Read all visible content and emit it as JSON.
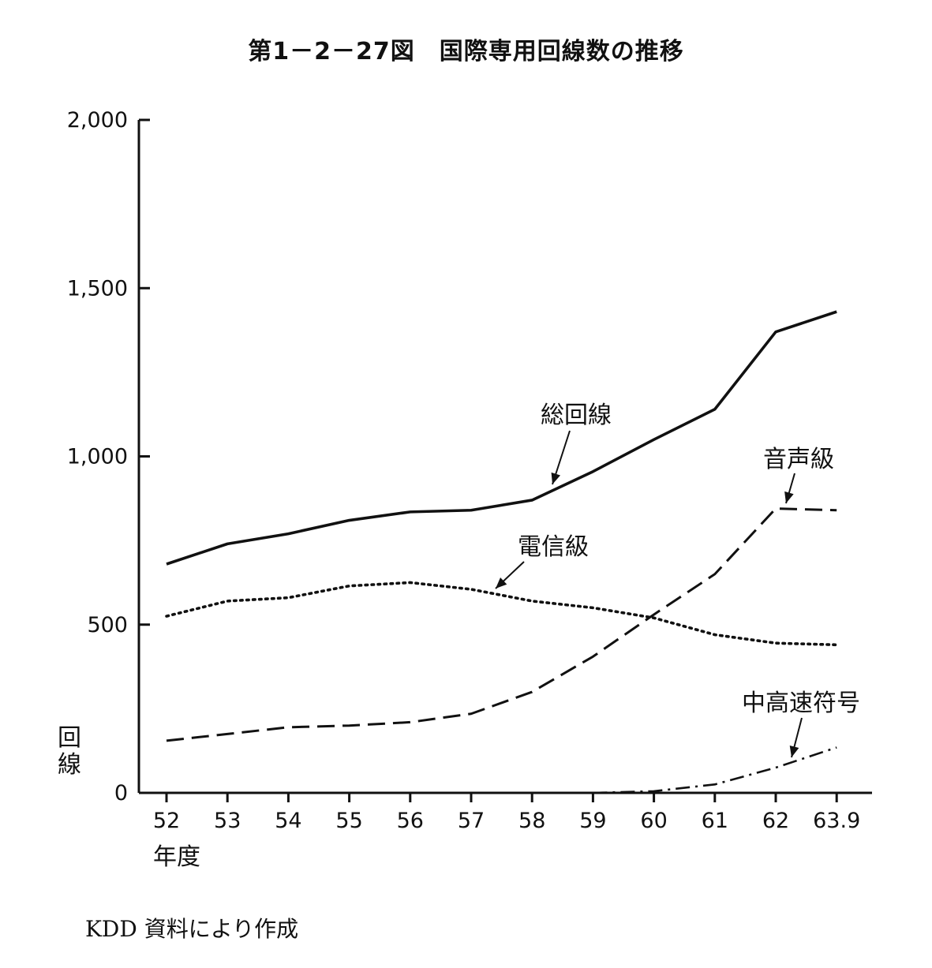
{
  "title": "第1－2－27図　国際専用回線数の推移",
  "source_note": "KDD 資料により作成",
  "chart_data": {
    "type": "line",
    "x": [
      "52",
      "53",
      "54",
      "55",
      "56",
      "57",
      "58",
      "59",
      "60",
      "61",
      "62",
      "63.9"
    ],
    "xlabel": "年度",
    "ylabel": "回線",
    "ylim": [
      0,
      2000
    ],
    "yticks": [
      0,
      500,
      1000,
      1500,
      2000
    ],
    "ytick_labels": [
      "0",
      "500",
      "1,000",
      "1,500",
      "2,000"
    ],
    "grid": false,
    "series": [
      {
        "name": "総回線",
        "style": "solid",
        "values": [
          680,
          740,
          770,
          810,
          835,
          840,
          870,
          955,
          1050,
          1140,
          1370,
          1430
        ]
      },
      {
        "name": "電信級",
        "style": "dotted",
        "values": [
          525,
          570,
          580,
          615,
          625,
          605,
          570,
          550,
          520,
          470,
          445,
          440
        ]
      },
      {
        "name": "音声級",
        "style": "dashed",
        "values": [
          155,
          175,
          195,
          200,
          210,
          235,
          300,
          405,
          530,
          650,
          845,
          840
        ]
      },
      {
        "name": "中高速符号",
        "style": "dashdot",
        "values": [
          null,
          null,
          null,
          null,
          null,
          null,
          null,
          0,
          5,
          25,
          75,
          135
        ]
      }
    ]
  }
}
